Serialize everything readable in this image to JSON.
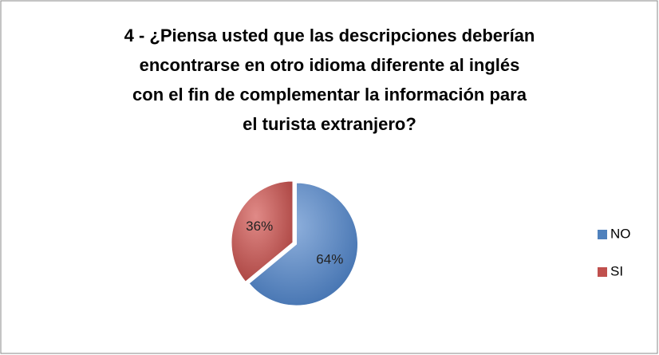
{
  "chart_data": {
    "type": "pie",
    "title": [
      "4 -  ¿Piensa usted que las descripciones deberían",
      "encontrarse en otro idioma diferente al inglés",
      "con el fin de complementar la  información para",
      "el turista extranjero?"
    ],
    "categories": [
      "NO",
      "SI"
    ],
    "values": [
      64,
      36
    ],
    "value_labels": [
      "64%",
      "36%"
    ],
    "colors": [
      "#4f81bd",
      "#c0504d"
    ],
    "legend": "right"
  }
}
